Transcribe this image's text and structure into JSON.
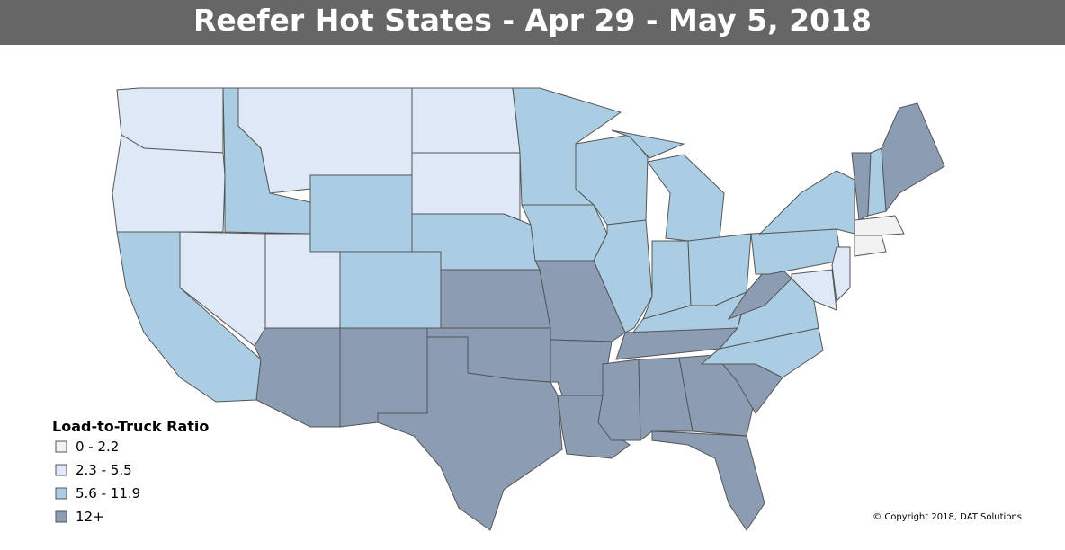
{
  "title": "Reefer Hot States - Apr 29 - May 5, 2018",
  "legend": {
    "title": "Load-to-Truck Ratio",
    "items": [
      {
        "label": "0 - 2.2",
        "color": "#f2f2f2"
      },
      {
        "label": "2.3 - 5.5",
        "color": "#dfe8f6"
      },
      {
        "label": "5.6 - 11.9",
        "color": "#aacde4"
      },
      {
        "label": "12+",
        "color": "#8b9cb3"
      }
    ]
  },
  "region_classes": [
    1,
    1,
    2,
    1,
    2,
    1,
    2,
    1,
    3,
    2,
    3,
    1,
    1,
    2,
    3,
    3,
    3,
    2,
    2,
    3,
    3,
    3,
    2,
    2,
    2,
    2,
    2,
    2,
    2,
    3,
    3,
    3,
    3,
    3,
    3,
    2,
    2,
    3,
    2,
    2,
    1,
    1,
    3,
    2,
    3,
    0,
    0
  ],
  "copyright": "© Copyright 2018, DAT Solutions"
}
